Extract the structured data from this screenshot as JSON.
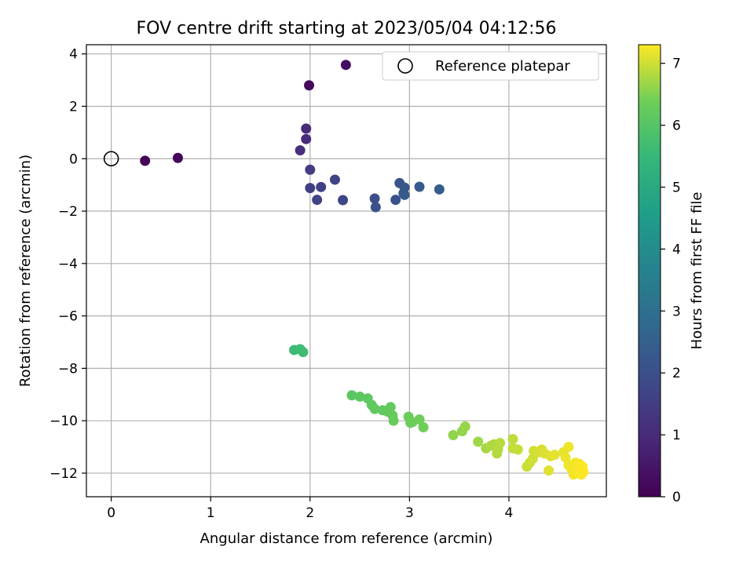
{
  "chart_data": {
    "type": "scatter",
    "title": "FOV centre drift starting at 2023/05/04 04:12:56",
    "xlabel": "Angular distance from reference (arcmin)",
    "ylabel": "Rotation from reference (arcmin)",
    "xlim": [
      -0.25,
      4.98
    ],
    "ylim": [
      -12.9,
      4.35
    ],
    "xticks": [
      0,
      1,
      2,
      3,
      4
    ],
    "yticks": [
      -12,
      -10,
      -8,
      -6,
      -4,
      -2,
      0,
      2,
      4
    ],
    "grid": true,
    "legend": {
      "placement": "top-right",
      "entries": [
        "Reference platepar"
      ]
    },
    "colorbar": {
      "label": "Hours from first FF file",
      "range": [
        0,
        7.3
      ],
      "ticks": [
        0,
        1,
        2,
        3,
        4,
        5,
        6,
        7
      ],
      "colormap": "viridis"
    },
    "reference_point": {
      "x": 0,
      "y": 0
    },
    "points": [
      {
        "x": 0.34,
        "y": -0.08,
        "c": 0.05
      },
      {
        "x": 0.67,
        "y": 0.03,
        "c": 0.1
      },
      {
        "x": 1.99,
        "y": 2.8,
        "c": 0.2
      },
      {
        "x": 2.36,
        "y": 3.58,
        "c": 0.3
      },
      {
        "x": 1.96,
        "y": 1.15,
        "c": 1.0
      },
      {
        "x": 1.96,
        "y": 0.75,
        "c": 1.05
      },
      {
        "x": 1.9,
        "y": 0.32,
        "c": 1.1
      },
      {
        "x": 2.0,
        "y": -0.42,
        "c": 1.5
      },
      {
        "x": 2.0,
        "y": -1.12,
        "c": 1.55
      },
      {
        "x": 2.11,
        "y": -1.08,
        "c": 1.6
      },
      {
        "x": 2.07,
        "y": -1.57,
        "c": 1.65
      },
      {
        "x": 2.25,
        "y": -0.8,
        "c": 1.7
      },
      {
        "x": 2.33,
        "y": -1.58,
        "c": 1.75
      },
      {
        "x": 2.65,
        "y": -1.52,
        "c": 2.0
      },
      {
        "x": 2.66,
        "y": -1.85,
        "c": 2.05
      },
      {
        "x": 2.86,
        "y": -1.57,
        "c": 2.1
      },
      {
        "x": 2.9,
        "y": -0.93,
        "c": 2.15
      },
      {
        "x": 2.94,
        "y": -1.32,
        "c": 2.2
      },
      {
        "x": 2.95,
        "y": -1.1,
        "c": 2.25
      },
      {
        "x": 2.95,
        "y": -1.38,
        "c": 2.3
      },
      {
        "x": 3.1,
        "y": -1.07,
        "c": 2.35
      },
      {
        "x": 3.3,
        "y": -1.17,
        "c": 2.4
      },
      {
        "x": 1.84,
        "y": -7.3,
        "c": 5.6
      },
      {
        "x": 1.9,
        "y": -7.27,
        "c": 5.62
      },
      {
        "x": 1.93,
        "y": -7.38,
        "c": 5.65
      },
      {
        "x": 2.42,
        "y": -9.03,
        "c": 6.1
      },
      {
        "x": 2.5,
        "y": -9.08,
        "c": 6.12
      },
      {
        "x": 2.58,
        "y": -9.15,
        "c": 6.14
      },
      {
        "x": 2.62,
        "y": -9.4,
        "c": 6.16
      },
      {
        "x": 2.65,
        "y": -9.55,
        "c": 6.18
      },
      {
        "x": 2.73,
        "y": -9.6,
        "c": 6.2
      },
      {
        "x": 2.78,
        "y": -9.65,
        "c": 6.22
      },
      {
        "x": 2.81,
        "y": -9.48,
        "c": 6.24
      },
      {
        "x": 2.83,
        "y": -9.8,
        "c": 6.26
      },
      {
        "x": 2.84,
        "y": -10.0,
        "c": 6.28
      },
      {
        "x": 2.99,
        "y": -9.85,
        "c": 6.3
      },
      {
        "x": 3.01,
        "y": -10.08,
        "c": 6.32
      },
      {
        "x": 3.03,
        "y": -10.05,
        "c": 6.34
      },
      {
        "x": 3.1,
        "y": -9.95,
        "c": 6.36
      },
      {
        "x": 3.14,
        "y": -10.25,
        "c": 6.38
      },
      {
        "x": 3.44,
        "y": -10.55,
        "c": 6.6
      },
      {
        "x": 3.53,
        "y": -10.4,
        "c": 6.62
      },
      {
        "x": 3.56,
        "y": -10.22,
        "c": 6.64
      },
      {
        "x": 3.69,
        "y": -10.8,
        "c": 6.7
      },
      {
        "x": 3.77,
        "y": -11.05,
        "c": 6.75
      },
      {
        "x": 3.82,
        "y": -10.95,
        "c": 6.78
      },
      {
        "x": 3.85,
        "y": -10.9,
        "c": 6.8
      },
      {
        "x": 3.88,
        "y": -11.25,
        "c": 6.82
      },
      {
        "x": 3.89,
        "y": -11.1,
        "c": 6.84
      },
      {
        "x": 3.91,
        "y": -10.85,
        "c": 6.86
      },
      {
        "x": 4.04,
        "y": -10.7,
        "c": 6.9
      },
      {
        "x": 4.04,
        "y": -11.05,
        "c": 6.92
      },
      {
        "x": 4.09,
        "y": -11.1,
        "c": 6.94
      },
      {
        "x": 4.18,
        "y": -11.75,
        "c": 6.96
      },
      {
        "x": 4.21,
        "y": -11.6,
        "c": 6.98
      },
      {
        "x": 4.24,
        "y": -11.45,
        "c": 7.0
      },
      {
        "x": 4.25,
        "y": -11.15,
        "c": 7.02
      },
      {
        "x": 4.3,
        "y": -11.2,
        "c": 7.04
      },
      {
        "x": 4.33,
        "y": -11.1,
        "c": 7.06
      },
      {
        "x": 4.36,
        "y": -11.25,
        "c": 7.08
      },
      {
        "x": 4.4,
        "y": -11.9,
        "c": 7.1
      },
      {
        "x": 4.42,
        "y": -11.35,
        "c": 7.12
      },
      {
        "x": 4.46,
        "y": -11.3,
        "c": 7.14
      },
      {
        "x": 4.55,
        "y": -11.2,
        "c": 7.16
      },
      {
        "x": 4.57,
        "y": -11.4,
        "c": 7.18
      },
      {
        "x": 4.6,
        "y": -11.0,
        "c": 7.2
      },
      {
        "x": 4.6,
        "y": -11.7,
        "c": 7.21
      },
      {
        "x": 4.63,
        "y": -11.85,
        "c": 7.22
      },
      {
        "x": 4.65,
        "y": -12.05,
        "c": 7.23
      },
      {
        "x": 4.67,
        "y": -11.6,
        "c": 7.24
      },
      {
        "x": 4.68,
        "y": -11.8,
        "c": 7.25
      },
      {
        "x": 4.7,
        "y": -12.0,
        "c": 7.26
      },
      {
        "x": 4.71,
        "y": -11.65,
        "c": 7.27
      },
      {
        "x": 4.72,
        "y": -11.9,
        "c": 7.28
      },
      {
        "x": 4.73,
        "y": -12.05,
        "c": 7.29
      },
      {
        "x": 4.74,
        "y": -11.75,
        "c": 7.3
      },
      {
        "x": 4.75,
        "y": -11.95,
        "c": 7.3
      }
    ]
  }
}
